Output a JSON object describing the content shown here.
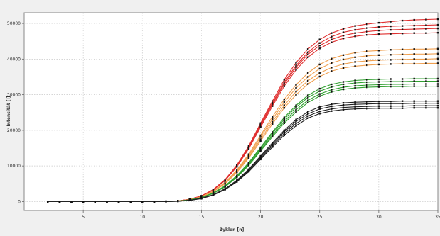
{
  "chart_data": {
    "type": "line",
    "title": "",
    "xlabel": "Zyklen [n]",
    "ylabel": "Intensität [I]",
    "xlim": [
      0,
      35
    ],
    "ylim": [
      -2500,
      53000
    ],
    "xticks": [
      5,
      10,
      15,
      20,
      25,
      30,
      35
    ],
    "yticks": [
      0,
      10000,
      20000,
      30000,
      40000,
      50000
    ],
    "xtick_labels": [
      "5",
      "10",
      "15",
      "20",
      "25",
      "30",
      "35"
    ],
    "ytick_labels": [
      "0",
      "10000",
      "20000",
      "30000",
      "40000",
      "50000"
    ],
    "grid": true,
    "x": [
      2,
      3,
      4,
      5,
      6,
      7,
      8,
      9,
      10,
      11,
      12,
      13,
      14,
      15,
      16,
      17,
      18,
      19,
      20,
      21,
      22,
      23,
      24,
      25,
      26,
      27,
      28,
      29,
      30,
      31,
      32,
      33,
      34,
      35
    ],
    "groups": [
      {
        "color": "#e03030",
        "series": [
          {
            "values": [
              0,
              0,
              0,
              0,
              0,
              0,
              0,
              0,
              0,
              10,
              60,
              200,
              650,
              1600,
              3400,
              6200,
              10300,
              15600,
              22000,
              28200,
              34200,
              39000,
              42800,
              45500,
              47300,
              48500,
              49300,
              49800,
              50200,
              50500,
              50800,
              51000,
              51100,
              51200
            ]
          },
          {
            "values": [
              0,
              0,
              0,
              0,
              0,
              0,
              0,
              0,
              0,
              10,
              60,
              200,
              640,
              1580,
              3350,
              6100,
              10100,
              15300,
              21600,
              27700,
              33500,
              38200,
              41900,
              44500,
              46300,
              47500,
              48200,
              48700,
              49000,
              49200,
              49300,
              49400,
              49500,
              49600
            ]
          },
          {
            "values": [
              0,
              0,
              0,
              0,
              0,
              0,
              0,
              0,
              0,
              10,
              60,
              195,
              630,
              1560,
              3300,
              6000,
              9950,
              15100,
              21300,
              27300,
              33000,
              37700,
              41300,
              43800,
              45500,
              46600,
              47300,
              47700,
              48000,
              48200,
              48300,
              48400,
              48500,
              48600
            ]
          },
          {
            "values": [
              0,
              0,
              0,
              0,
              0,
              0,
              0,
              0,
              0,
              10,
              60,
              190,
              620,
              1540,
              3250,
              5900,
              9800,
              14800,
              20900,
              26800,
              32400,
              37000,
              40500,
              43000,
              44700,
              45800,
              46400,
              46800,
              47000,
              47100,
              47200,
              47300,
              47300,
              47400
            ]
          }
        ]
      },
      {
        "color": "#f0a050",
        "series": [
          {
            "values": [
              0,
              0,
              0,
              0,
              0,
              0,
              0,
              0,
              0,
              10,
              50,
              170,
              550,
              1380,
              2950,
              5400,
              8900,
              13300,
              18600,
              23800,
              28700,
              32800,
              36100,
              38500,
              40100,
              41100,
              41800,
              42200,
              42400,
              42600,
              42700,
              42800,
              42800,
              42900
            ]
          },
          {
            "values": [
              0,
              0,
              0,
              0,
              0,
              0,
              0,
              0,
              0,
              10,
              50,
              165,
              540,
              1350,
              2880,
              5250,
              8650,
              12900,
              18100,
              23100,
              27900,
              31900,
              35000,
              37300,
              38900,
              39900,
              40500,
              40900,
              41100,
              41200,
              41300,
              41400,
              41400,
              41500
            ]
          },
          {
            "values": [
              0,
              0,
              0,
              0,
              0,
              0,
              0,
              0,
              0,
              10,
              50,
              160,
              530,
              1320,
              2800,
              5100,
              8400,
              12500,
              17500,
              22400,
              27000,
              30900,
              33900,
              36100,
              37600,
              38600,
              39200,
              39500,
              39700,
              39800,
              39900,
              40000,
              40000,
              40100
            ]
          },
          {
            "values": [
              0,
              0,
              0,
              0,
              0,
              0,
              0,
              0,
              0,
              10,
              50,
              155,
              520,
              1300,
              2750,
              5000,
              8200,
              12200,
              17000,
              21800,
              26300,
              30000,
              33000,
              35100,
              36600,
              37500,
              38000,
              38300,
              38500,
              38600,
              38700,
              38700,
              38800,
              38800
            ]
          }
        ]
      },
      {
        "color": "#30a030",
        "series": [
          {
            "values": [
              0,
              0,
              0,
              0,
              0,
              0,
              0,
              0,
              0,
              10,
              40,
              140,
              460,
              1150,
              2450,
              4450,
              7300,
              10900,
              15200,
              19500,
              23600,
              27000,
              29800,
              31700,
              32900,
              33600,
              34000,
              34200,
              34300,
              34400,
              34400,
              34500,
              34500,
              34500
            ]
          },
          {
            "values": [
              0,
              0,
              0,
              0,
              0,
              0,
              0,
              0,
              0,
              10,
              40,
              135,
              450,
              1130,
              2400,
              4350,
              7150,
              10700,
              14900,
              19100,
              23100,
              26500,
              29200,
              31000,
              32200,
              32900,
              33300,
              33500,
              33600,
              33700,
              33700,
              33800,
              33800,
              33800
            ]
          },
          {
            "values": [
              0,
              0,
              0,
              0,
              0,
              0,
              0,
              0,
              0,
              10,
              40,
              130,
              440,
              1100,
              2340,
              4250,
              6980,
              10400,
              14500,
              18600,
              22500,
              25800,
              28400,
              30200,
              31400,
              32100,
              32500,
              32700,
              32800,
              32900,
              32900,
              33000,
              33000,
              33000
            ]
          },
          {
            "values": [
              0,
              0,
              0,
              0,
              0,
              0,
              0,
              0,
              0,
              10,
              40,
              125,
              430,
              1080,
              2300,
              4150,
              6800,
              10150,
              14200,
              18200,
              22000,
              25200,
              27800,
              29600,
              30800,
              31500,
              31900,
              32100,
              32200,
              32300,
              32300,
              32400,
              32400,
              32400
            ]
          }
        ]
      },
      {
        "color": "#222222",
        "series": [
          {
            "values": [
              0,
              0,
              0,
              0,
              0,
              0,
              0,
              0,
              0,
              10,
              30,
              110,
              360,
              900,
              1950,
              3600,
              6000,
              9100,
              12800,
              16500,
              20000,
              23000,
              25200,
              26600,
              27300,
              27700,
              27900,
              28000,
              28100,
              28100,
              28200,
              28200,
              28200,
              28200
            ]
          },
          {
            "values": [
              0,
              0,
              0,
              0,
              0,
              0,
              0,
              0,
              0,
              10,
              30,
              105,
              350,
              880,
              1900,
              3520,
              5850,
              8850,
              12500,
              16100,
              19600,
              22500,
              24600,
              26000,
              26700,
              27100,
              27300,
              27400,
              27500,
              27500,
              27500,
              27600,
              27600,
              27600
            ]
          },
          {
            "values": [
              0,
              0,
              0,
              0,
              0,
              0,
              0,
              0,
              0,
              10,
              30,
              100,
              340,
              860,
              1860,
              3440,
              5700,
              8600,
              12150,
              15700,
              19100,
              21900,
              24000,
              25300,
              26000,
              26400,
              26600,
              26700,
              26800,
              26800,
              26800,
              26900,
              26900,
              26900
            ]
          },
          {
            "values": [
              0,
              0,
              0,
              0,
              0,
              0,
              0,
              0,
              0,
              10,
              30,
              100,
              330,
              840,
              1820,
              3360,
              5560,
              8380,
              11850,
              15300,
              18600,
              21300,
              23400,
              24700,
              25400,
              25800,
              26000,
              26100,
              26200,
              26200,
              26200,
              26300,
              26300,
              26300
            ]
          }
        ]
      }
    ]
  }
}
